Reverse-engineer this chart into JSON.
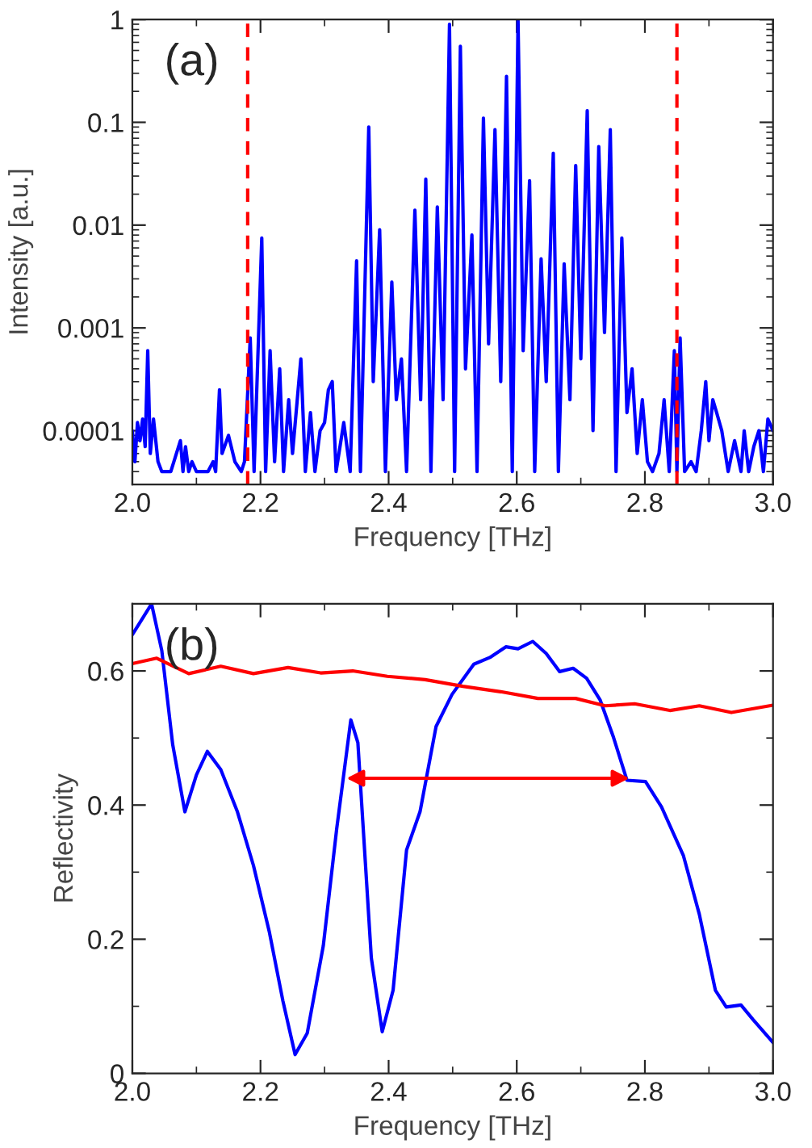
{
  "chart_data": [
    {
      "type": "line",
      "xlabel": "Frequency [THz]",
      "ylabel": "Intensity [a.u.]",
      "annotations": [
        "(a)"
      ],
      "log": "y",
      "grid": false,
      "legend": false,
      "marker": "none",
      "line_style": "solid",
      "xlim": [
        2.0,
        3.0
      ],
      "xticks": [
        {
          "value": 2.0,
          "label": "2.0"
        },
        {
          "value": 2.1,
          "label": null
        },
        {
          "value": 2.2,
          "label": "2.2"
        },
        {
          "value": 2.3,
          "label": null
        },
        {
          "value": 2.4,
          "label": "2.4"
        },
        {
          "value": 2.5,
          "label": null
        },
        {
          "value": 2.6,
          "label": "2.6"
        },
        {
          "value": 2.7,
          "label": null
        },
        {
          "value": 2.8,
          "label": "2.8"
        },
        {
          "value": 2.9,
          "label": null
        },
        {
          "value": 3.0,
          "label": "3.0"
        }
      ],
      "ylim": [
        3e-05,
        1
      ],
      "yticks": [
        0.0001,
        0.001,
        0.01,
        0.1,
        1
      ],
      "ref_lines": [
        {
          "axis": "x",
          "value": 2.18,
          "color": "#ff0000",
          "line_style": "dashed"
        },
        {
          "axis": "x",
          "value": 2.85,
          "color": "#ff0000",
          "line_style": "dashed"
        }
      ],
      "series": [
        {
          "color": "#0000ff",
          "x": [
            2.0,
            2.004,
            2.008,
            2.012,
            2.016,
            2.02,
            2.024,
            2.028,
            2.033,
            2.04,
            2.046,
            2.06,
            2.075,
            2.079,
            2.083,
            2.088,
            2.093,
            2.1,
            2.118,
            2.126,
            2.13,
            2.136,
            2.14,
            2.15,
            2.16,
            2.17,
            2.175,
            2.184,
            2.19,
            2.202,
            2.208,
            2.215,
            2.222,
            2.23,
            2.236,
            2.244,
            2.25,
            2.263,
            2.27,
            2.278,
            2.285,
            2.293,
            2.3,
            2.306,
            2.312,
            2.318,
            2.33,
            2.34,
            2.35,
            2.356,
            2.369,
            2.376,
            2.386,
            2.395,
            2.405,
            2.412,
            2.42,
            2.428,
            2.441,
            2.45,
            2.458,
            2.466,
            2.476,
            2.485,
            2.495,
            2.503,
            2.512,
            2.52,
            2.53,
            2.538,
            2.548,
            2.556,
            2.566,
            2.575,
            2.584,
            2.593,
            2.602,
            2.61,
            2.62,
            2.628,
            2.638,
            2.646,
            2.657,
            2.665,
            2.674,
            2.683,
            2.692,
            2.7,
            2.71,
            2.719,
            2.728,
            2.737,
            2.746,
            2.755,
            2.764,
            2.772,
            2.78,
            2.788,
            2.796,
            2.804,
            2.812,
            2.822,
            2.83,
            2.838,
            2.846,
            2.85,
            2.855,
            2.862,
            2.872,
            2.88,
            2.888,
            2.895,
            2.9,
            2.906,
            2.912,
            2.92,
            2.93,
            2.94,
            2.95,
            2.955,
            2.962,
            2.97,
            2.978,
            2.985,
            2.992,
            3.0
          ],
          "values": [
            0.0001,
            5e-05,
            0.00012,
            8e-05,
            0.00013,
            7e-05,
            0.0006,
            6e-05,
            0.00013,
            5e-05,
            4e-05,
            4e-05,
            8e-05,
            4e-05,
            7e-05,
            4e-05,
            5e-05,
            4e-05,
            4e-05,
            5e-05,
            4e-05,
            0.00025,
            6e-05,
            9e-05,
            5e-05,
            4e-05,
            5e-05,
            0.0008,
            4e-05,
            0.0075,
            4e-05,
            0.0006,
            5e-05,
            0.0004,
            4e-05,
            0.0002,
            6e-05,
            0.0005,
            4e-05,
            0.00015,
            4e-05,
            0.0001,
            0.00012,
            0.00025,
            0.0003,
            4e-05,
            0.00012,
            4e-05,
            0.0045,
            4e-05,
            0.09,
            0.0003,
            0.009,
            4e-05,
            0.0028,
            0.0002,
            0.0005,
            4e-05,
            0.014,
            0.0002,
            0.028,
            4e-05,
            0.015,
            0.0002,
            0.9,
            4e-05,
            0.55,
            0.0004,
            0.008,
            4e-05,
            0.11,
            0.0007,
            0.085,
            0.0003,
            0.28,
            4e-05,
            1.0,
            0.0006,
            0.027,
            4e-05,
            0.0047,
            0.0003,
            0.05,
            4e-05,
            0.0042,
            0.0002,
            0.038,
            0.0005,
            0.13,
            0.0001,
            0.058,
            0.0009,
            0.085,
            4e-05,
            0.0075,
            0.00015,
            0.0004,
            6e-05,
            0.0002,
            5e-05,
            4e-05,
            6e-05,
            0.0002,
            4e-05,
            0.0006,
            4e-05,
            0.0008,
            4e-05,
            5e-05,
            4e-05,
            0.0001,
            0.0003,
            8e-05,
            0.0002,
            0.00015,
            0.0001,
            4e-05,
            8e-05,
            4e-05,
            0.0001,
            4e-05,
            7e-05,
            0.0001,
            4e-05,
            0.00013,
            0.0001
          ]
        }
      ]
    },
    {
      "type": "line",
      "xlabel": "Frequency [THz]",
      "ylabel": "Reflectivity",
      "annotations": [
        "(b)"
      ],
      "grid": false,
      "legend": false,
      "marker": "none",
      "line_style": "solid",
      "xlim": [
        2.0,
        3.0
      ],
      "xticks": [
        {
          "value": 2.0,
          "label": "2.0"
        },
        {
          "value": 2.1,
          "label": null
        },
        {
          "value": 2.2,
          "label": "2.2"
        },
        {
          "value": 2.3,
          "label": null
        },
        {
          "value": 2.4,
          "label": "2.4"
        },
        {
          "value": 2.5,
          "label": null
        },
        {
          "value": 2.6,
          "label": "2.6"
        },
        {
          "value": 2.7,
          "label": null
        },
        {
          "value": 2.8,
          "label": "2.8"
        },
        {
          "value": 2.9,
          "label": null
        },
        {
          "value": 3.0,
          "label": "3.0"
        }
      ],
      "ylim": [
        0,
        0.7
      ],
      "yticks": [
        0,
        {
          "value": 0.1,
          "label": null
        },
        0.2,
        {
          "value": 0.3,
          "label": null
        },
        0.4,
        {
          "value": 0.5,
          "label": null
        },
        0.6
      ],
      "series": [
        {
          "color": "#0000ff",
          "x": [
            2.0,
            2.03,
            2.046,
            2.063,
            2.082,
            2.1,
            2.117,
            2.138,
            2.164,
            2.189,
            2.214,
            2.235,
            2.254,
            2.273,
            2.298,
            2.319,
            2.341,
            2.352,
            2.373,
            2.39,
            2.407,
            2.428,
            2.449,
            2.474,
            2.499,
            2.533,
            2.558,
            2.583,
            2.602,
            2.625,
            2.646,
            2.667,
            2.688,
            2.709,
            2.73,
            2.751,
            2.772,
            2.801,
            2.826,
            2.86,
            2.885,
            2.91,
            2.927,
            2.95,
            2.969,
            3.0
          ],
          "values": [
            0.654,
            0.7,
            0.63,
            0.49,
            0.39,
            0.445,
            0.48,
            0.453,
            0.39,
            0.31,
            0.21,
            0.108,
            0.028,
            0.06,
            0.19,
            0.365,
            0.527,
            0.493,
            0.172,
            0.062,
            0.124,
            0.333,
            0.39,
            0.517,
            0.565,
            0.61,
            0.62,
            0.636,
            0.633,
            0.644,
            0.626,
            0.599,
            0.604,
            0.589,
            0.557,
            0.501,
            0.437,
            0.435,
            0.397,
            0.325,
            0.237,
            0.124,
            0.099,
            0.102,
            0.08,
            0.046
          ]
        },
        {
          "color": "#ff0000",
          "x": [
            2.0,
            2.038,
            2.088,
            2.138,
            2.189,
            2.243,
            2.294,
            2.344,
            2.398,
            2.457,
            2.516,
            2.575,
            2.633,
            2.692,
            2.738,
            2.784,
            2.839,
            2.885,
            2.935,
            3.0
          ],
          "values": [
            0.611,
            0.619,
            0.596,
            0.607,
            0.596,
            0.605,
            0.597,
            0.6,
            0.592,
            0.587,
            0.577,
            0.569,
            0.559,
            0.559,
            0.548,
            0.551,
            0.541,
            0.548,
            0.538,
            0.549
          ]
        }
      ]
    }
  ]
}
